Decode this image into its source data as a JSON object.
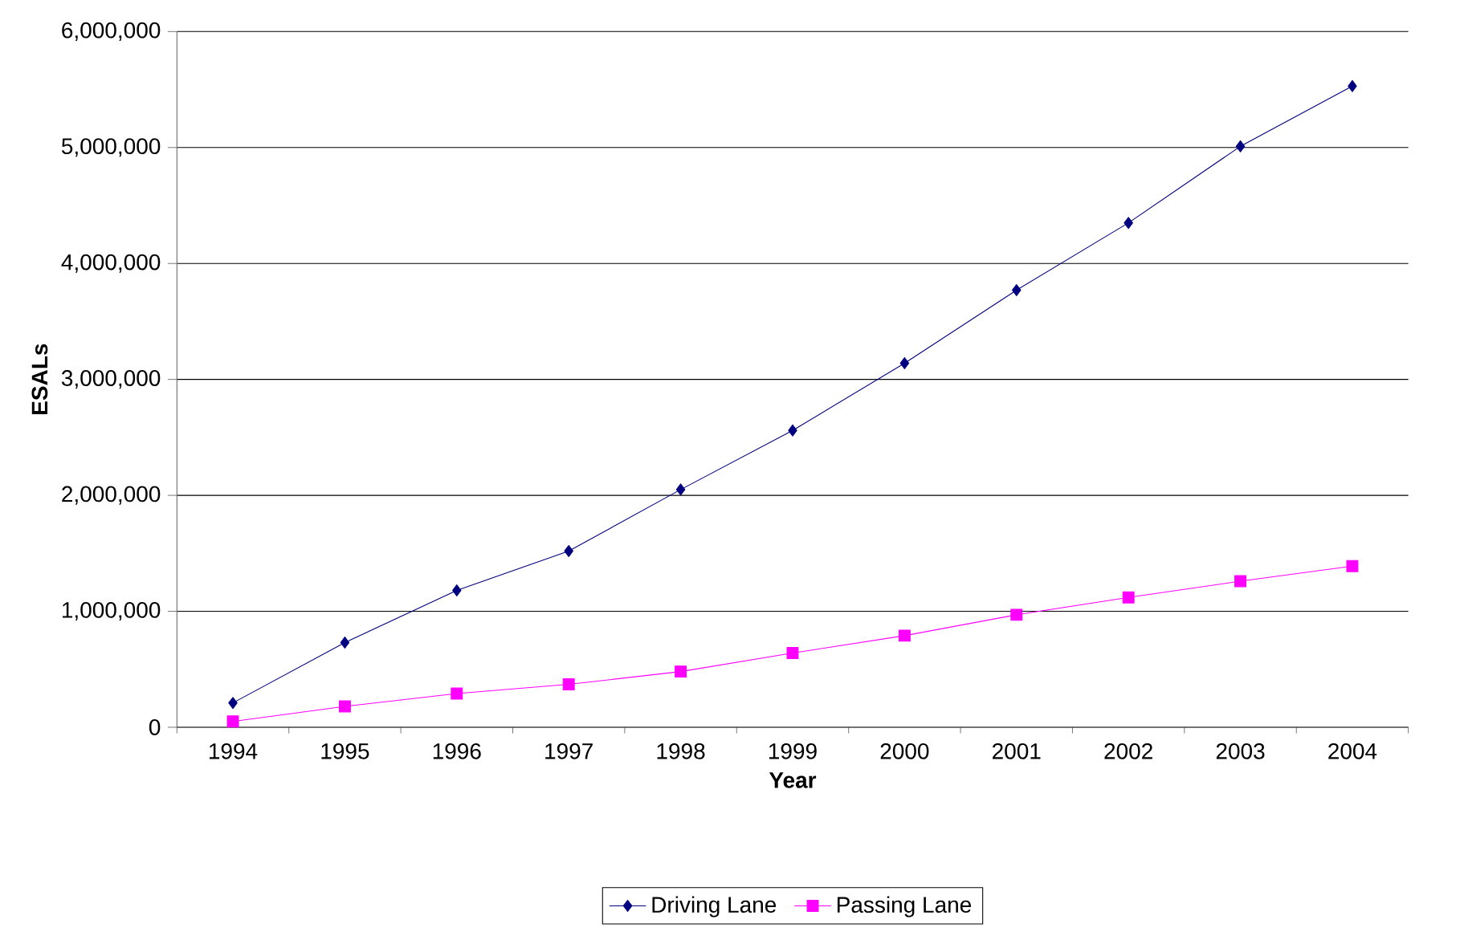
{
  "chart_data": {
    "type": "line",
    "xlabel": "Year",
    "ylabel": "ESALs",
    "categories": [
      "1994",
      "1995",
      "1996",
      "1997",
      "1998",
      "1999",
      "2000",
      "2001",
      "2002",
      "2003",
      "2004"
    ],
    "series": [
      {
        "name": "Driving Lane",
        "color": "#000080",
        "marker": "diamond",
        "values": [
          210000,
          730000,
          1180000,
          1520000,
          2050000,
          2560000,
          3140000,
          3770000,
          4350000,
          5010000,
          5530000
        ]
      },
      {
        "name": "Passing Lane",
        "color": "#ff00ff",
        "marker": "square",
        "values": [
          50000,
          180000,
          290000,
          370000,
          480000,
          640000,
          790000,
          970000,
          1120000,
          1260000,
          1390000
        ]
      }
    ],
    "ylim": [
      0,
      6000000
    ],
    "yticks": [
      0,
      {
        "value": 1000000,
        "label": "1,000,000"
      },
      {
        "value": 2000000,
        "label": "2,000,000"
      },
      {
        "value": 3000000,
        "label": "3,000,000"
      },
      {
        "value": 4000000,
        "label": "4,000,000"
      },
      {
        "value": 5000000,
        "label": "5,000,000"
      },
      {
        "value": 6000000,
        "label": "6,000,000"
      }
    ],
    "grid": "y",
    "legend": "bottom",
    "line_style": "solid"
  }
}
